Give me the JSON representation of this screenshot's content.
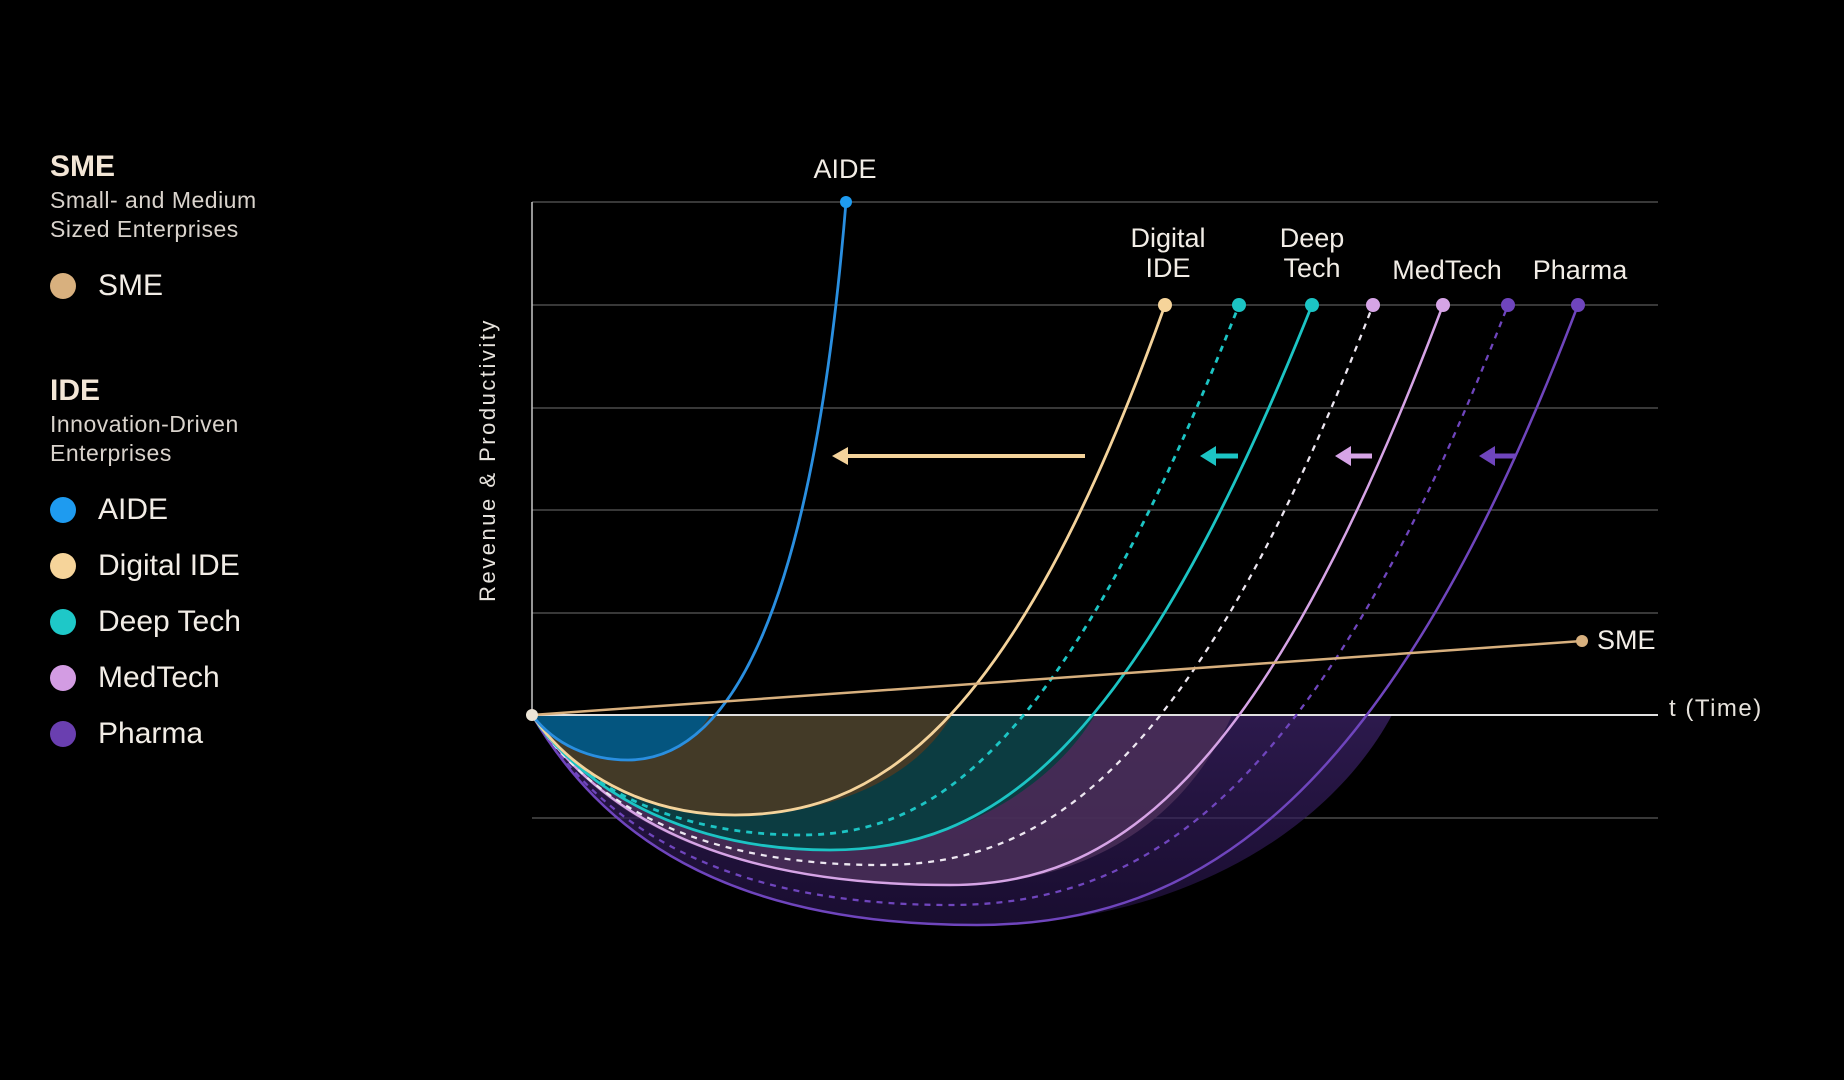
{
  "legend": {
    "sme": {
      "title": "SME",
      "desc_line1": "Small- and Medium",
      "desc_line2": "Sized Enterprises",
      "items": [
        {
          "label": "SME",
          "color": "#d8b07e"
        }
      ]
    },
    "ide": {
      "title": "IDE",
      "desc_line1": "Innovation-Driven",
      "desc_line2": "Enterprises",
      "items": [
        {
          "label": "AIDE",
          "color": "#1e9bf0"
        },
        {
          "label": "Digital IDE",
          "color": "#f6d49a"
        },
        {
          "label": "Deep Tech",
          "color": "#1ec8c8"
        },
        {
          "label": "MedTech",
          "color": "#d39ce3"
        },
        {
          "label": "Pharma",
          "color": "#6a3fb0"
        }
      ]
    }
  },
  "axes": {
    "ylabel": "Revenue & Productivity",
    "xlabel": "t (Time)"
  },
  "curve_labels": {
    "aide": "AIDE",
    "digital_line1": "Digital",
    "digital_line2": "IDE",
    "deeptech_line1": "Deep",
    "deeptech_line2": "Tech",
    "medtech": "MedTech",
    "pharma": "Pharma",
    "sme": "SME"
  },
  "colors": {
    "aide": "#2a8fe0",
    "digital": "#f4d39b",
    "deeptech": "#1cc4c4",
    "medtech": "#d6a4e6",
    "pharma": "#6f45bd",
    "sme": "#d8b07e",
    "grid": "#5a5a5a",
    "axis": "#dcdcdc"
  }
}
